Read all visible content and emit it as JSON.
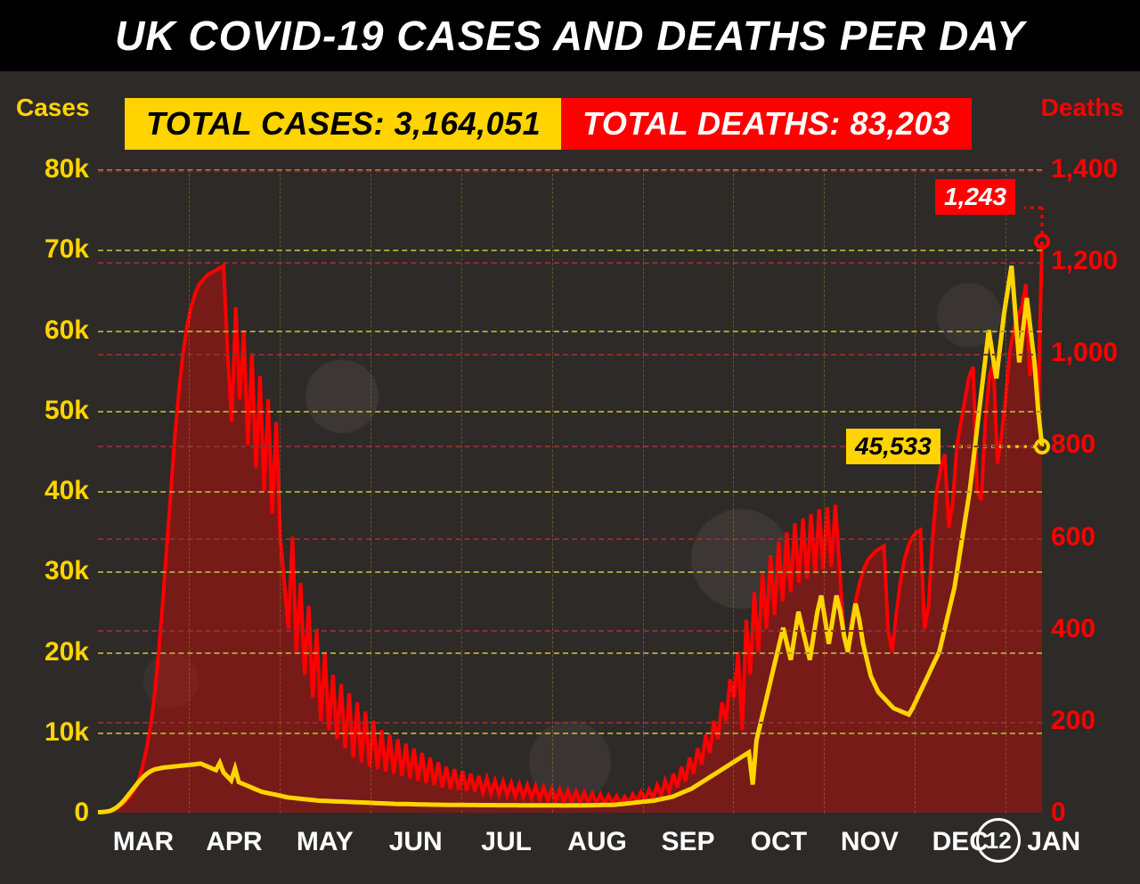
{
  "title": "UK COVID-19 CASES AND DEATHS PER DAY",
  "stat_cases_label": "TOTAL CASES: 3,164,051",
  "stat_deaths_label": "TOTAL DEATHS: 83,203",
  "axis_left_title": "Cases",
  "axis_right_title": "Deaths",
  "colors": {
    "cases": "#ffd400",
    "deaths": "#ff0000",
    "bg": "#2e2a27",
    "title_bg": "#000000",
    "grid_y": "#a8a03a",
    "grid_r": "#8b3030",
    "text_white": "#ffffff"
  },
  "chart": {
    "type": "dual-axis-line-area",
    "x_months": [
      "MAR",
      "APR",
      "MAY",
      "JUN",
      "JUL",
      "AUG",
      "SEP",
      "OCT",
      "NOV",
      "DEC",
      "JAN"
    ],
    "x_final_day": "12",
    "cases_axis": {
      "min": 0,
      "max": 80000,
      "ticks": [
        0,
        10000,
        20000,
        30000,
        40000,
        50000,
        60000,
        70000,
        80000
      ],
      "tick_labels": [
        "0",
        "10k",
        "20k",
        "30k",
        "40k",
        "50k",
        "60k",
        "70k",
        "80k"
      ]
    },
    "deaths_axis": {
      "min": 0,
      "max": 1400,
      "ticks": [
        0,
        200,
        400,
        600,
        800,
        1000,
        1200,
        1400
      ],
      "tick_labels": [
        "0",
        "200",
        "400",
        "600",
        "800",
        "1,000",
        "1,200",
        "1,400"
      ]
    },
    "callout_deaths": {
      "label": "1,243",
      "value": 1243
    },
    "callout_cases": {
      "label": "45,533",
      "value": 45533
    },
    "cases_series": [
      50,
      80,
      120,
      200,
      400,
      700,
      1100,
      1600,
      2200,
      2800,
      3400,
      4000,
      4500,
      4900,
      5200,
      5400,
      5500,
      5600,
      5650,
      5700,
      5750,
      5800,
      5850,
      5900,
      5950,
      6000,
      6050,
      6100,
      5900,
      5700,
      5500,
      5300,
      6200,
      5000,
      4500,
      4000,
      5500,
      3800,
      3600,
      3400,
      3200,
      3000,
      2800,
      2600,
      2500,
      2400,
      2300,
      2200,
      2100,
      2000,
      1900,
      1850,
      1800,
      1750,
      1700,
      1650,
      1600,
      1550,
      1500,
      1480,
      1460,
      1440,
      1420,
      1400,
      1380,
      1360,
      1340,
      1320,
      1300,
      1280,
      1260,
      1240,
      1220,
      1200,
      1180,
      1160,
      1140,
      1120,
      1100,
      1090,
      1080,
      1070,
      1060,
      1050,
      1040,
      1030,
      1020,
      1010,
      1000,
      995,
      990,
      985,
      980,
      975,
      970,
      965,
      960,
      955,
      950,
      948,
      946,
      944,
      942,
      940,
      938,
      936,
      934,
      932,
      930,
      928,
      926,
      924,
      922,
      920,
      918,
      916,
      914,
      912,
      910,
      908,
      906,
      904,
      902,
      900,
      905,
      910,
      915,
      920,
      925,
      930,
      935,
      940,
      950,
      960,
      970,
      980,
      1000,
      1050,
      1100,
      1150,
      1200,
      1250,
      1300,
      1350,
      1400,
      1450,
      1500,
      1600,
      1700,
      1800,
      1900,
      2000,
      2200,
      2400,
      2600,
      2800,
      3000,
      3300,
      3600,
      3900,
      4200,
      4500,
      4800,
      5100,
      5400,
      5700,
      6000,
      6300,
      6600,
      6900,
      7200,
      7500,
      3500,
      9000,
      11000,
      13000,
      15000,
      17000,
      19000,
      21000,
      23000,
      21000,
      19000,
      22000,
      25000,
      23000,
      21000,
      19000,
      22000,
      25000,
      27000,
      24000,
      21000,
      24000,
      27000,
      25000,
      22000,
      20000,
      23000,
      26000,
      24000,
      21000,
      19000,
      17000,
      16000,
      15000,
      14500,
      14000,
      13500,
      13000,
      12800,
      12600,
      12400,
      12200,
      13000,
      14000,
      15000,
      16000,
      17000,
      18000,
      19000,
      20000,
      22000,
      24000,
      26000,
      28000,
      31000,
      34000,
      37000,
      40000,
      44000,
      48000,
      52000,
      56000,
      60000,
      57000,
      54000,
      58000,
      62000,
      65000,
      68000,
      62000,
      56000,
      60000,
      64000,
      60000,
      56000,
      50000,
      45533
    ],
    "deaths_series": [
      1,
      2,
      3,
      5,
      8,
      12,
      18,
      26,
      36,
      50,
      70,
      100,
      140,
      190,
      260,
      350,
      460,
      580,
      700,
      820,
      920,
      1000,
      1060,
      1100,
      1130,
      1150,
      1160,
      1170,
      1175,
      1180,
      1185,
      1190,
      1000,
      850,
      1100,
      900,
      1050,
      800,
      1000,
      750,
      950,
      700,
      900,
      650,
      850,
      600,
      500,
      400,
      600,
      350,
      500,
      300,
      450,
      250,
      400,
      200,
      350,
      180,
      300,
      160,
      280,
      140,
      260,
      120,
      240,
      110,
      220,
      100,
      200,
      95,
      180,
      90,
      170,
      85,
      160,
      80,
      150,
      75,
      140,
      70,
      130,
      65,
      120,
      60,
      110,
      55,
      100,
      52,
      95,
      50,
      90,
      48,
      85,
      46,
      80,
      44,
      75,
      42,
      70,
      40,
      68,
      38,
      65,
      36,
      62,
      34,
      60,
      32,
      58,
      30,
      55,
      28,
      52,
      26,
      50,
      25,
      48,
      24,
      46,
      23,
      44,
      22,
      42,
      21,
      40,
      20,
      38,
      20,
      36,
      20,
      35,
      22,
      40,
      25,
      45,
      28,
      50,
      32,
      60,
      38,
      70,
      45,
      85,
      55,
      100,
      68,
      120,
      85,
      140,
      105,
      170,
      130,
      200,
      160,
      240,
      200,
      290,
      250,
      350,
      180,
      420,
      300,
      480,
      350,
      520,
      400,
      560,
      430,
      590,
      460,
      610,
      480,
      630,
      500,
      640,
      510,
      650,
      520,
      660,
      530,
      665,
      535,
      670,
      540,
      400,
      350,
      420,
      460,
      500,
      530,
      550,
      560,
      570,
      575,
      580,
      400,
      350,
      430,
      500,
      550,
      580,
      600,
      610,
      615,
      400,
      450,
      600,
      700,
      750,
      780,
      620,
      680,
      800,
      850,
      900,
      950,
      970,
      700,
      680,
      850,
      950,
      980,
      760,
      820,
      900,
      1000,
      1050,
      1080,
      1100,
      1150,
      950,
      1000,
      880,
      1243
    ]
  }
}
